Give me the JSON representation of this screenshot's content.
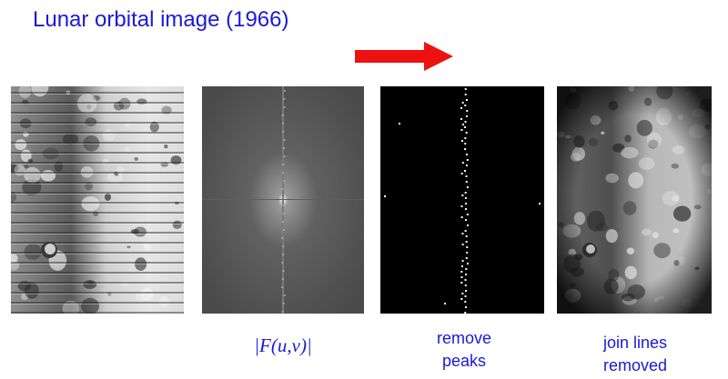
{
  "title": "Lunar orbital image (1966)",
  "colors": {
    "title_text": "#1a1ad6",
    "arrow": "#ee1111",
    "caption_text": "#1a1ad6"
  },
  "arrow": {
    "icon": "right-arrow-icon"
  },
  "panels": [
    {
      "name": "lunar-original",
      "caption_lines": []
    },
    {
      "name": "fourier-spectrum",
      "caption_lines": [
        "|F(u,v)|"
      ]
    },
    {
      "name": "filtered-mask",
      "caption_lines": [
        "remove",
        "peaks"
      ]
    },
    {
      "name": "lunar-restored",
      "caption_lines": [
        "join lines",
        "removed"
      ]
    }
  ]
}
